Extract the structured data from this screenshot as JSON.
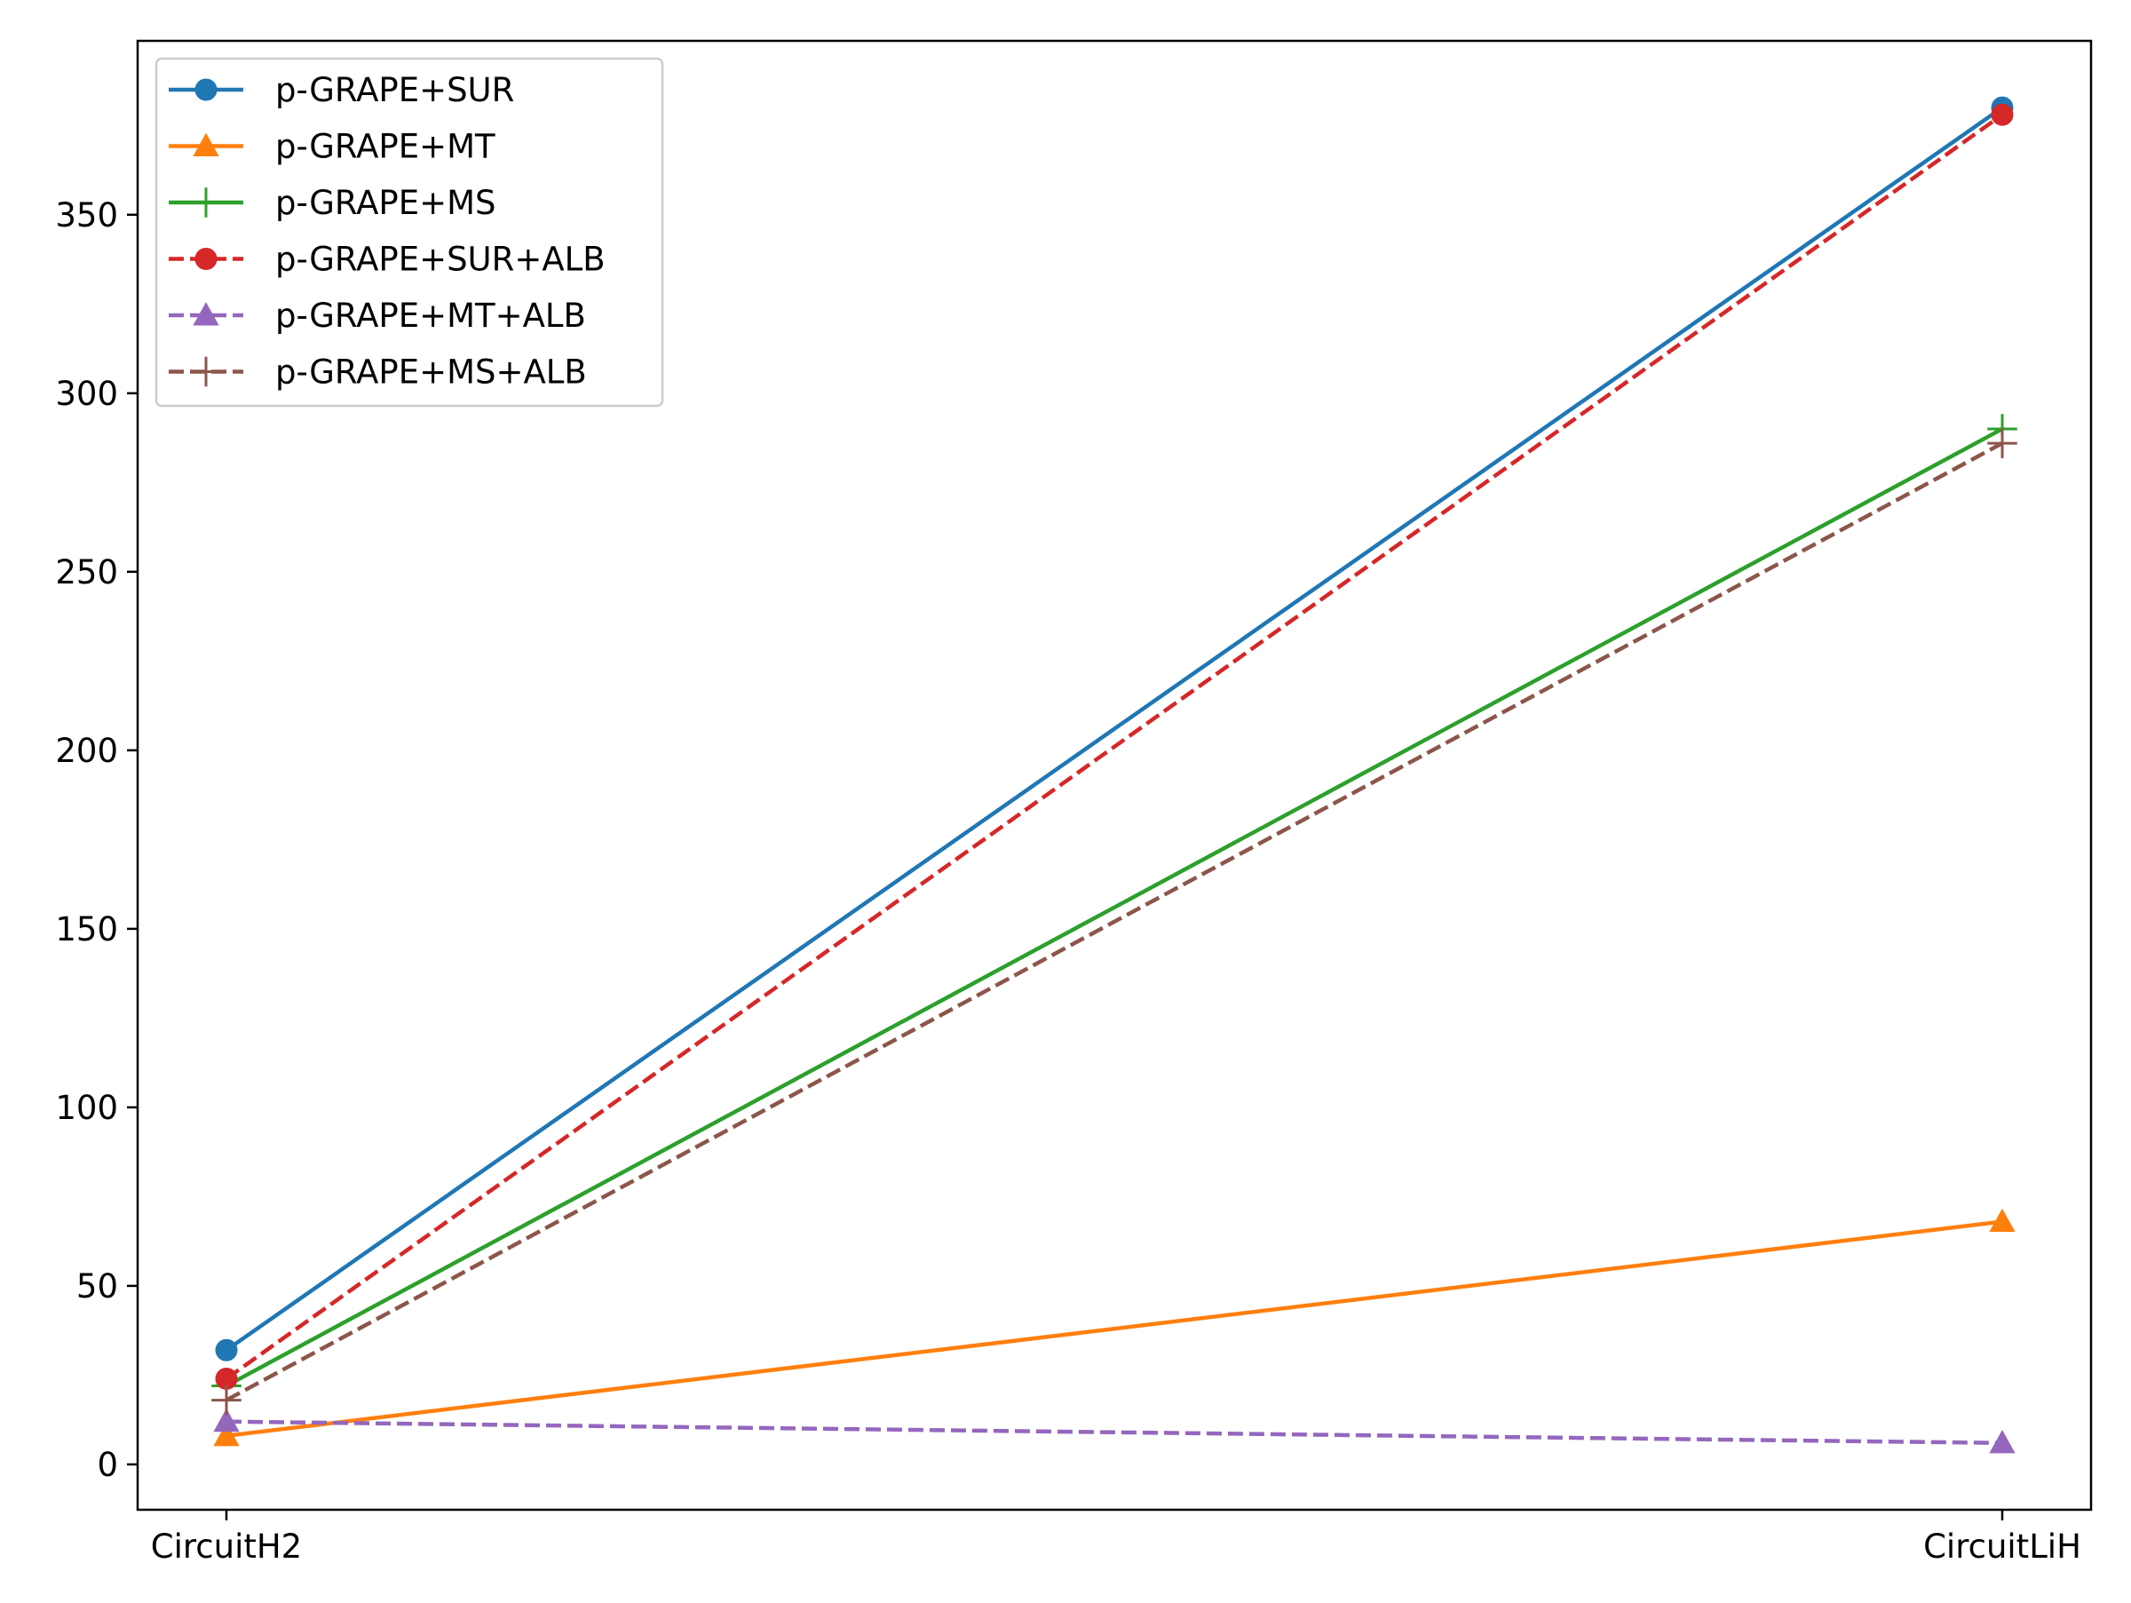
{
  "chart_data": {
    "type": "line",
    "title": "",
    "xlabel": "",
    "ylabel": "",
    "categories": [
      "CircuitH2",
      "CircuitLiH"
    ],
    "ylim": [
      -12.7,
      398.7
    ],
    "y_ticks": [
      0,
      50,
      100,
      150,
      200,
      250,
      300,
      350
    ],
    "grid": false,
    "legend_position": "upper-left",
    "series": [
      {
        "name": "p-GRAPE+SUR",
        "values": [
          32,
          380
        ],
        "color": "#1f77b4",
        "line_style": "solid",
        "marker": "circle"
      },
      {
        "name": "p-GRAPE+MT",
        "values": [
          8,
          68
        ],
        "color": "#ff7f0e",
        "line_style": "solid",
        "marker": "triangle"
      },
      {
        "name": "p-GRAPE+MS",
        "values": [
          22,
          290
        ],
        "color": "#2ca02c",
        "line_style": "solid",
        "marker": "plus"
      },
      {
        "name": "p-GRAPE+SUR+ALB",
        "values": [
          24,
          378
        ],
        "color": "#d62728",
        "line_style": "dashed",
        "marker": "circle"
      },
      {
        "name": "p-GRAPE+MT+ALB",
        "values": [
          12,
          6
        ],
        "color": "#9467bd",
        "line_style": "dashed",
        "marker": "triangle"
      },
      {
        "name": "p-GRAPE+MS+ALB",
        "values": [
          18,
          286
        ],
        "color": "#8c564b",
        "line_style": "dashed",
        "marker": "plus"
      }
    ]
  }
}
